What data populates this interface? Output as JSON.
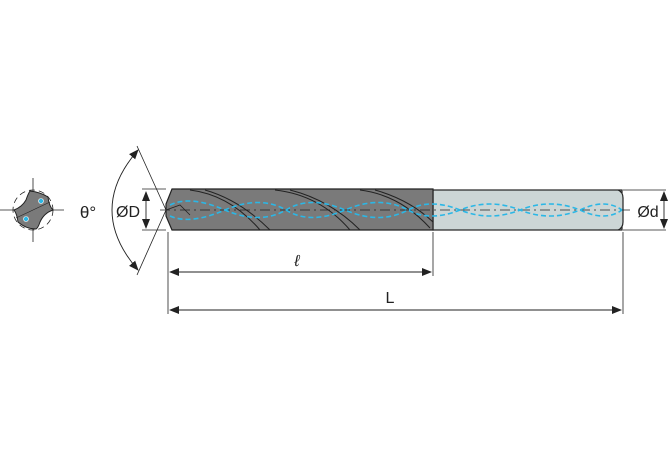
{
  "labels": {
    "point_angle": "θ°",
    "cutting_diameter": "ØD",
    "shank_diameter": "Ød",
    "flute_length": "ℓ",
    "overall_length": "L"
  },
  "colors": {
    "fluted_body": "#7a7a7a",
    "shank": "#ccd6d6",
    "coolant_channel": "#2bb7e6",
    "outline": "#222222"
  }
}
